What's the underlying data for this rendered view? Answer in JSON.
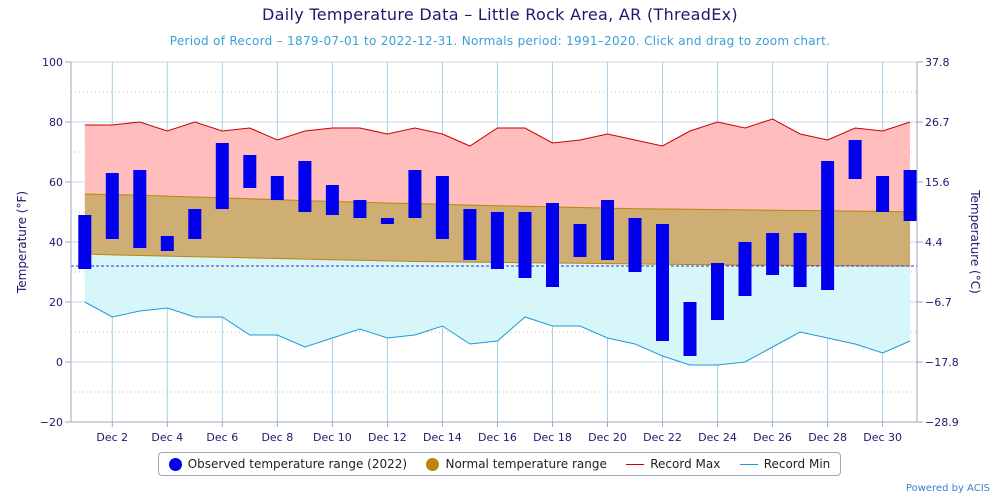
{
  "title": "Daily Temperature Data – Little Rock Area, AR (ThreadEx)",
  "subtitle": "Period of Record – 1879-07-01 to 2022-12-31. Normals period: 1991–2020. Click and drag to zoom chart.",
  "credit": "Powered by ACIS",
  "colors": {
    "observed": "#0000ee",
    "normal": "#b8860b",
    "normal_fill": "#cfae74",
    "record_max": "#cc0000",
    "record_max_fill": "#ffbdbd",
    "record_min": "#1e9bd7",
    "record_min_fill": "#d6f6fa",
    "axis_text": "#1a1a6e",
    "grid": "#a8cfe6",
    "freezing_line": "#3333cc"
  },
  "legend": [
    {
      "label": "Observed temperature range (2022)",
      "kind": "dot",
      "color": "#0000ee"
    },
    {
      "label": "Normal temperature range",
      "kind": "dot",
      "color": "#b8860b"
    },
    {
      "label": "Record Max",
      "kind": "line",
      "color": "#cc0000"
    },
    {
      "label": "Record Min",
      "kind": "line",
      "color": "#1e9bd7"
    }
  ],
  "chart_data": {
    "type": "bar",
    "ylabel_left": "Temperature (°F)",
    "ylabel_right": "Temperature (°C)",
    "ylim": [
      -20,
      100
    ],
    "yticks_left": [
      "100",
      "80",
      "60",
      "40",
      "20",
      "0",
      "−20"
    ],
    "yticks_right": [
      "37.8",
      "26.7",
      "15.6",
      "4.4",
      "−6.7",
      "−17.8",
      "−28.9"
    ],
    "xticks": [
      "Dec 2",
      "Dec 4",
      "Dec 6",
      "Dec 8",
      "Dec 10",
      "Dec 12",
      "Dec 14",
      "Dec 16",
      "Dec 18",
      "Dec 20",
      "Dec 22",
      "Dec 24",
      "Dec 26",
      "Dec 28",
      "Dec 30"
    ],
    "days": [
      1,
      2,
      3,
      4,
      5,
      6,
      7,
      8,
      9,
      10,
      11,
      12,
      13,
      14,
      15,
      16,
      17,
      18,
      19,
      20,
      21,
      22,
      23,
      24,
      25,
      26,
      27,
      28,
      29,
      30,
      31
    ],
    "observed_high": [
      49,
      63,
      64,
      42,
      51,
      73,
      69,
      62,
      67,
      59,
      54,
      48,
      64,
      62,
      51,
      50,
      50,
      53,
      46,
      54,
      48,
      46,
      20,
      33,
      40,
      43,
      43,
      67,
      74,
      62,
      64
    ],
    "observed_low": [
      31,
      41,
      38,
      37,
      41,
      51,
      58,
      54,
      50,
      49,
      48,
      46,
      48,
      41,
      34,
      31,
      28,
      25,
      35,
      34,
      30,
      7,
      2,
      14,
      22,
      29,
      25,
      24,
      61,
      50,
      47
    ],
    "normal_high": [
      56,
      55.8,
      55.6,
      55.3,
      55,
      54.7,
      54.4,
      54.1,
      53.8,
      53.5,
      53.3,
      53,
      52.8,
      52.6,
      52.3,
      52.1,
      51.9,
      51.7,
      51.5,
      51.3,
      51.1,
      51,
      50.9,
      50.8,
      50.7,
      50.6,
      50.5,
      50.4,
      50.3,
      50.2,
      50.1
    ],
    "normal_low": [
      36,
      35.7,
      35.5,
      35.3,
      35.1,
      34.9,
      34.7,
      34.5,
      34.3,
      34.1,
      33.9,
      33.7,
      33.5,
      33.4,
      33.3,
      33.2,
      33.1,
      33,
      32.9,
      32.8,
      32.7,
      32.6,
      32.5,
      32.4,
      32.3,
      32.3,
      32.2,
      32.1,
      32.1,
      32,
      32
    ],
    "record_max": [
      79,
      79,
      80,
      77,
      80,
      77,
      78,
      74,
      77,
      78,
      78,
      76,
      78,
      76,
      72,
      78,
      78,
      73,
      74,
      76,
      74,
      72,
      77,
      80,
      78,
      81,
      76,
      74,
      78,
      77,
      80
    ],
    "record_min": [
      20,
      15,
      17,
      18,
      15,
      15,
      9,
      9,
      5,
      8,
      11,
      8,
      9,
      12,
      6,
      7,
      15,
      12,
      12,
      8,
      6,
      2,
      -1,
      -1,
      0,
      5,
      10,
      8,
      6,
      3,
      7
    ],
    "freezing_line": 32
  }
}
